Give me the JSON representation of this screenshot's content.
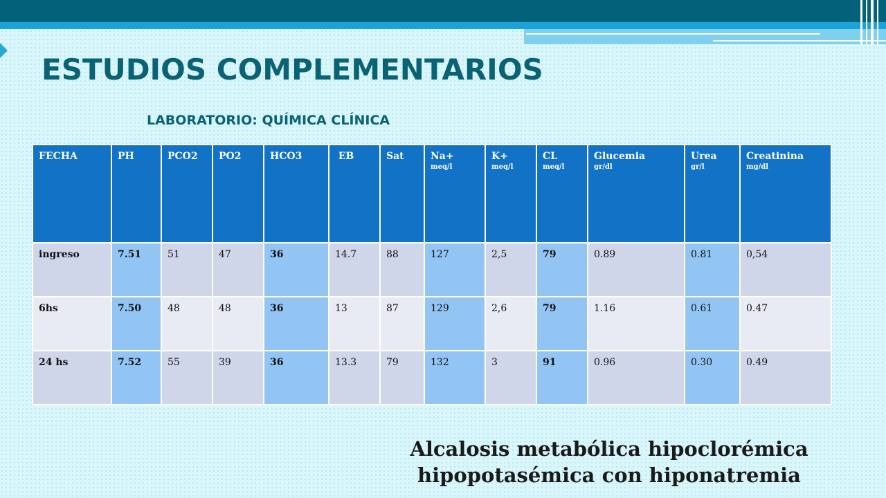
{
  "title": "ESTUDIOS COMPLEMENTARIOS",
  "subtitle": "LABORATORIO: QUÍMICA CLÍNICA",
  "table": {
    "headers": [
      {
        "label": "FECHA",
        "unit": ""
      },
      {
        "label": "PH",
        "unit": ""
      },
      {
        "label": "PCO2",
        "unit": ""
      },
      {
        "label": "PO2",
        "unit": ""
      },
      {
        "label": "HCO3",
        "unit": ""
      },
      {
        "label": " EB",
        "unit": ""
      },
      {
        "label": "Sat",
        "unit": ""
      },
      {
        "label": "Na+",
        "unit": "meq/l"
      },
      {
        "label": "K+",
        "unit": "meq/l"
      },
      {
        "label": "CL",
        "unit": "meq/l"
      },
      {
        "label": "Glucemia",
        "unit": "gr/dl"
      },
      {
        "label": "Urea",
        "unit": "gr/l"
      },
      {
        "label": "Creatinina",
        "unit": "mg/dl"
      }
    ],
    "rows": [
      [
        "ingreso",
        "7.51",
        "51",
        "47",
        "36",
        "14.7",
        "88",
        "127",
        "2,5",
        "79",
        "0.89",
        "0.81",
        "0,54"
      ],
      [
        "6hs",
        "7.50",
        "48",
        "48",
        "36",
        "13",
        "87",
        "129",
        "2,6",
        "79",
        "1.16",
        "0.61",
        "0.47"
      ],
      [
        "24 hs",
        "7.52",
        "55",
        "39",
        "36",
        "13.3",
        "79",
        "132",
        "3",
        "91",
        "0.96",
        "0.30",
        "0.49"
      ]
    ]
  },
  "conclusion": {
    "line1": "Alcalosis metabólica hipoclorémica",
    "line2": "hipopotasémica con hiponatremia"
  },
  "colors": {
    "header_bg": "#1272c6",
    "highlight": "#93c5f4",
    "row_dark": "#cfd6ea",
    "row_light": "#e8ebf4",
    "title": "#0a6275"
  }
}
